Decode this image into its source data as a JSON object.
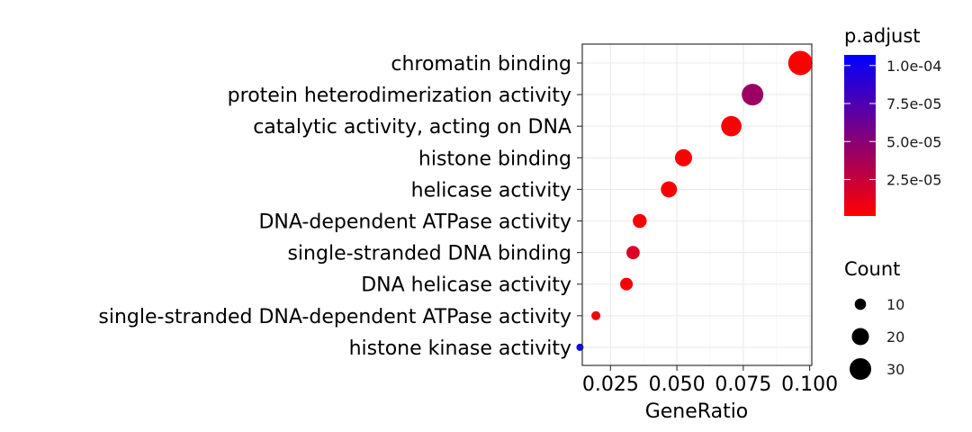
{
  "chart_data": {
    "type": "scatter",
    "title": "",
    "xlabel": "GeneRatio",
    "ylabel": "",
    "xlim": [
      0.0125,
      0.1005
    ],
    "x_ticks": [
      0.025,
      0.05,
      0.075,
      0.1
    ],
    "x_tick_labels": [
      "0.025",
      "0.050",
      "0.075",
      "0.100"
    ],
    "grid": true,
    "categories": [
      "chromatin binding",
      "protein heterodimerization activity",
      "catalytic activity, acting on DNA",
      "histone binding",
      "helicase activity",
      "DNA-dependent ATPase activity",
      "single-stranded DNA binding",
      "DNA helicase activity",
      "single-stranded DNA-dependent ATPase activity",
      "histone kinase activity"
    ],
    "points": [
      {
        "category": "chromatin binding",
        "x": 0.0965,
        "count": 37,
        "p_adjust": 1e-06
      },
      {
        "category": "protein heterodimerization activity",
        "x": 0.0785,
        "count": 30,
        "p_adjust": 4.2e-05
      },
      {
        "category": "catalytic activity, acting on DNA",
        "x": 0.0705,
        "count": 27,
        "p_adjust": 2e-06
      },
      {
        "category": "histone binding",
        "x": 0.0525,
        "count": 20,
        "p_adjust": 2e-06
      },
      {
        "category": "helicase activity",
        "x": 0.047,
        "count": 18,
        "p_adjust": 3e-06
      },
      {
        "category": "DNA-dependent ATPase activity",
        "x": 0.036,
        "count": 14,
        "p_adjust": 4e-06
      },
      {
        "category": "single-stranded DNA binding",
        "x": 0.0335,
        "count": 13,
        "p_adjust": 1.6e-05
      },
      {
        "category": "DNA helicase activity",
        "x": 0.031,
        "count": 12,
        "p_adjust": 3e-06
      },
      {
        "category": "single-stranded DNA-dependent ATPase activity",
        "x": 0.0195,
        "count": 7,
        "p_adjust": 4e-06
      },
      {
        "category": "histone kinase activity",
        "x": 0.0135,
        "count": 5,
        "p_adjust": 0.000107
      }
    ],
    "color_legend": {
      "title": "p.adjust",
      "ticks": [
        2.5e-05,
        5e-05,
        7.5e-05,
        0.0001
      ],
      "tick_labels": [
        "2.5e-05",
        "5.0e-05",
        "7.5e-05",
        "1.0e-04"
      ],
      "range": [
        1e-06,
        0.000107
      ],
      "low_color": "#ff0000",
      "high_color": "#0000ff"
    },
    "size_legend": {
      "title": "Count",
      "values": [
        10,
        20,
        30
      ],
      "labels": [
        "10",
        "20",
        "30"
      ]
    },
    "legend_position": "right"
  }
}
